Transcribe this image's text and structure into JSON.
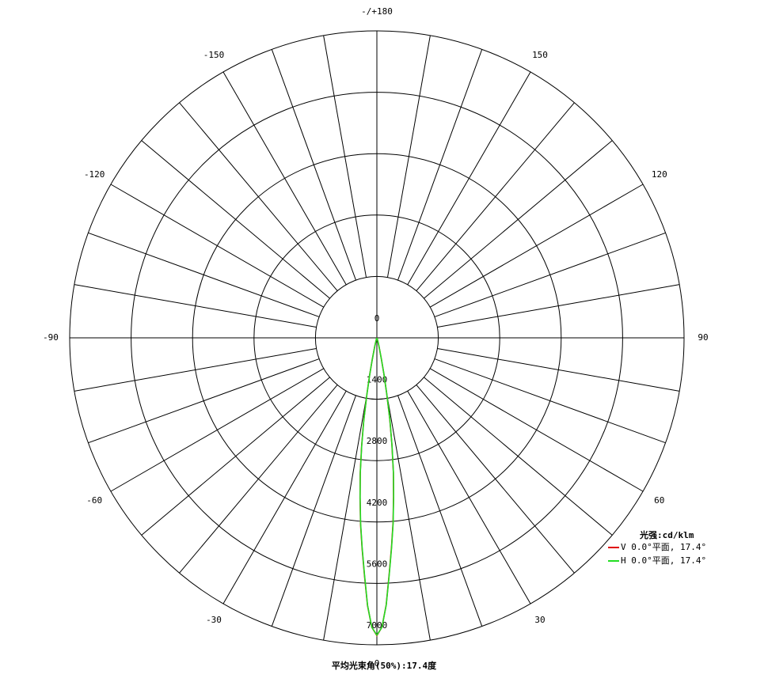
{
  "chart_data": {
    "type": "polar",
    "title": "平均光束角(50%):17.4度",
    "legend_title": "光强:cd/klm",
    "legend_position": "lower right",
    "rlim": [
      0,
      7000
    ],
    "rticks": [
      0,
      1400,
      2800,
      4200,
      5600,
      7000
    ],
    "thetaticks": [
      {
        "value": 180,
        "label": "-/+180"
      },
      150,
      120,
      90,
      60,
      30,
      0,
      -30,
      -60,
      -90,
      -120,
      -150
    ],
    "theta_grid_step": 10,
    "series": [
      {
        "name": "V 0.0°平面, 17.4°",
        "color": "#e00000",
        "theta": [
          -90,
          -30,
          -20,
          -16,
          -14,
          -12,
          -11,
          -10,
          -9,
          -8,
          -7,
          -6,
          -5,
          -4,
          -3,
          -2,
          -1,
          0,
          1,
          2,
          3,
          4,
          5,
          6,
          7,
          8,
          9,
          10,
          11,
          12,
          14,
          16,
          20,
          30,
          90
        ],
        "values": [
          0,
          0,
          30,
          80,
          200,
          520,
          870,
          1320,
          1920,
          2500,
          3120,
          3670,
          4270,
          4820,
          5420,
          6110,
          6600,
          6790,
          6600,
          6090,
          5380,
          4780,
          4230,
          3630,
          3080,
          2460,
          1880,
          1280,
          830,
          480,
          190,
          80,
          30,
          0,
          0
        ]
      },
      {
        "name": "H 0.0°平面, 17.4°",
        "color": "#22dd22",
        "theta": [
          -90,
          -30,
          -20,
          -16,
          -14,
          -12,
          -11,
          -10,
          -9,
          -8,
          -7,
          -6,
          -5,
          -4,
          -3,
          -2,
          -1,
          0,
          1,
          2,
          3,
          4,
          5,
          6,
          7,
          8,
          9,
          10,
          11,
          12,
          14,
          16,
          20,
          30,
          90
        ],
        "values": [
          0,
          0,
          30,
          80,
          200,
          500,
          850,
          1300,
          1900,
          2480,
          3100,
          3650,
          4250,
          4800,
          5400,
          6100,
          6600,
          6780,
          6600,
          6100,
          5400,
          4800,
          4250,
          3650,
          3100,
          2480,
          1900,
          1300,
          850,
          500,
          200,
          80,
          30,
          0,
          0
        ]
      }
    ]
  }
}
